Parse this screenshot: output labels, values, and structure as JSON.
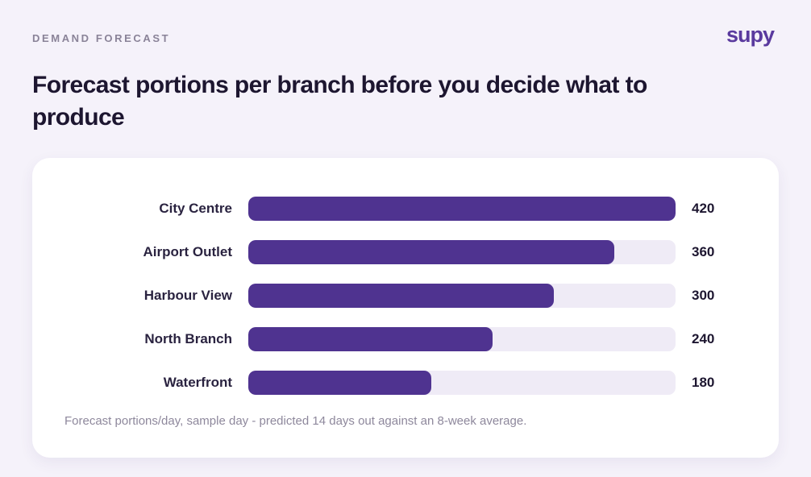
{
  "header": {
    "eyebrow": "DEMAND FORECAST",
    "logo": "supy",
    "title": "Forecast portions per branch before you decide what to produce"
  },
  "chart_data": {
    "type": "bar",
    "orientation": "horizontal",
    "categories": [
      "City Centre",
      "Airport Outlet",
      "Harbour View",
      "North Branch",
      "Waterfront"
    ],
    "values": [
      420,
      360,
      300,
      240,
      180
    ],
    "value_labels": [
      "420",
      "360",
      "300",
      "240",
      "180"
    ],
    "xlim": [
      0,
      420
    ],
    "grid": false,
    "legend": "none",
    "colors": {
      "bar": "#4f3390",
      "track": "#efebf6"
    },
    "note": "Forecast portions/day, sample day - predicted 14 days out against an 8-week average."
  }
}
